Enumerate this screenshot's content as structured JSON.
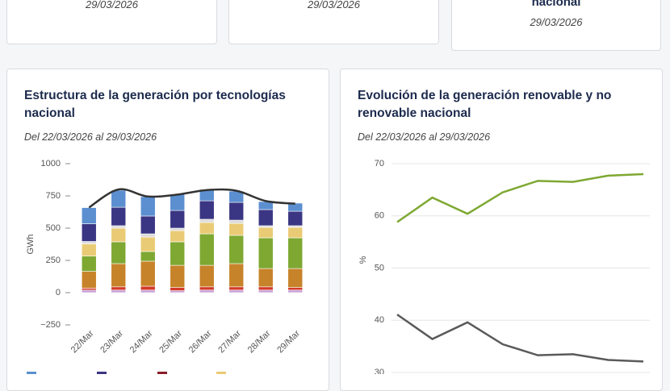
{
  "cards": [
    {
      "date": "29/03/2026"
    },
    {
      "date": "29/03/2026"
    },
    {
      "title": "nacional",
      "date": "29/03/2026"
    }
  ],
  "chart_data": [
    {
      "type": "bar",
      "stacked": true,
      "title": "Estructura de la generación por tecnologías nacional",
      "subtitle": "Del 22/03/2026 al 29/03/2026",
      "y_label": "GWh",
      "categories": [
        "22/Mar",
        "23/Mar",
        "24/Mar",
        "25/Mar",
        "26/Mar",
        "27/Mar",
        "28/Mar",
        "29/Mar"
      ],
      "ylim": [
        -250,
        1000
      ],
      "yticks": [
        {
          "value": -250,
          "label": "−250"
        },
        0,
        250,
        500,
        750,
        1000
      ],
      "grid": false,
      "series": [
        {
          "color": "#c8a2d8",
          "values": [
            20,
            20,
            20,
            15,
            20,
            20,
            20,
            20
          ]
        },
        {
          "color": "#d33a2c",
          "values": [
            15,
            25,
            30,
            25,
            25,
            25,
            25,
            20
          ]
        },
        {
          "color": "#c7832a",
          "values": [
            130,
            180,
            194,
            172,
            167,
            180,
            142,
            147
          ]
        },
        {
          "color": "#7ea832",
          "values": [
            119,
            169,
            75,
            182,
            244,
            219,
            238,
            238
          ]
        },
        {
          "color": "#eacb75",
          "values": [
            94,
            106,
            112,
            87,
            88,
            93,
            81,
            81
          ]
        },
        {
          "color": "#dcdcdc",
          "values": [
            19,
            19,
            25,
            19,
            25,
            25,
            13,
            13
          ]
        },
        {
          "color": "#3b3683",
          "values": [
            137,
            143,
            138,
            137,
            143,
            138,
            125,
            112
          ]
        },
        {
          "color": "#5b8fd0",
          "values": [
            125,
            132,
            150,
            125,
            88,
            87,
            62,
            63
          ]
        },
        {
          "type": "line",
          "color": "#333333",
          "values": [
            660,
            800,
            745,
            760,
            795,
            790,
            710,
            690
          ]
        }
      ]
    },
    {
      "type": "line",
      "title": "Evolución de la generación renovable y no renovable nacional",
      "subtitle": "Del 22/03/2026 al 29/03/2026",
      "y_label": "%",
      "ylim": [
        30,
        70
      ],
      "yticks": [
        30,
        40,
        50,
        60,
        70
      ],
      "grid": true,
      "series": [
        {
          "color": "#7ea832",
          "values": [
            58.8,
            63.5,
            60.4,
            64.5,
            66.7,
            66.5,
            67.7,
            68.0
          ]
        },
        {
          "color": "#5a5a5a",
          "values": [
            41.1,
            36.4,
            39.6,
            35.4,
            33.3,
            33.5,
            32.4,
            32.1
          ]
        }
      ]
    }
  ]
}
